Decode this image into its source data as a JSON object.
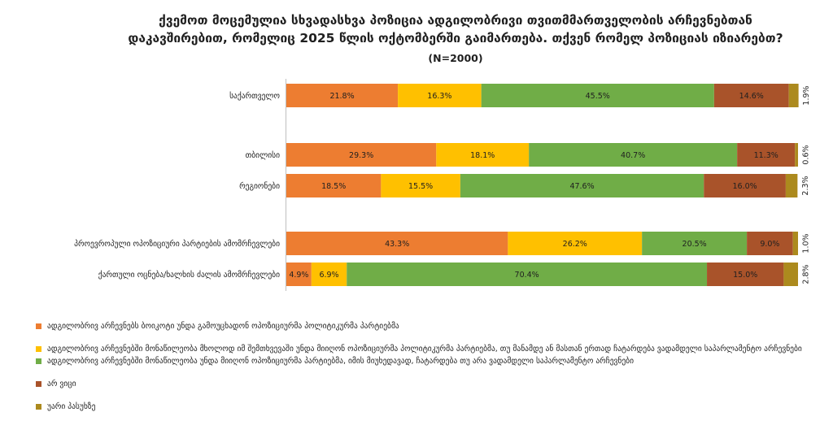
{
  "chart_data": {
    "type": "bar",
    "orientation": "horizontal",
    "stacked": true,
    "title_lines": [
      "ქვემოთ მოცემულია სხვადასხვა პოზიცია ადგილობრივი თვითმმართველობის არჩევნებთან",
      "დაკავშირებით, რომელიც 2025 წლის ოქტომბერში გაიმართება. თქვენ რომელ პოზიციას იზიარებთ?"
    ],
    "subtitle": "(N=2000)",
    "categories": [
      "საქართველო",
      "თბილისი",
      "რეგიონები",
      "პროევროპული ოპოზიციური პარტიების ამომრჩევლები",
      "ქართული ოცნება/ხალხის ძალის ამომრჩევლები"
    ],
    "series": [
      {
        "name": "ადგილობრივ არჩევნებს ბოიკოტი უნდა გამოუცხადონ ოპოზიციურმა პოლიტიკურმა პარტიებმა",
        "color": "#ED7D31",
        "values": [
          21.8,
          29.3,
          18.5,
          43.3,
          4.9
        ],
        "labels": [
          "21.8%",
          "29.3%",
          "18.5%",
          "43.3%",
          "4.9%"
        ]
      },
      {
        "name": "ადგილობრივ არჩევნებში მონაწილეობა მხოლოდ იმ შემთხვევაში უნდა მიიღონ ოპოზიციურმა პოლიტიკურმა პარტიებმა, თუ მანამდე ან მასთან ერთად ჩატარდება ვადამდელი საპარლამენტო არჩევნები",
        "color": "#FFC000",
        "values": [
          16.3,
          18.1,
          15.5,
          26.2,
          6.9
        ],
        "labels": [
          "16.3%",
          "18.1%",
          "15.5%",
          "26.2%",
          "6.9%"
        ]
      },
      {
        "name": "ადგილობრივ არჩევნებში მონაწილეობა უნდა მიიღონ ოპოზიციურმა პარტიებმა, იმის მიუხედავად, ჩატარდება თუ არა ვადამდელი საპარლამენტო არჩევნები",
        "color": "#70AD47",
        "values": [
          45.5,
          40.7,
          47.6,
          20.5,
          70.4
        ],
        "labels": [
          "45.5%",
          "40.7%",
          "47.6%",
          "20.5%",
          "70.4%"
        ]
      },
      {
        "name": "არ ვიცი",
        "color": "#A9532A",
        "values": [
          14.6,
          11.3,
          16.0,
          9.0,
          15.0
        ],
        "labels": [
          "14.6%",
          "11.3%",
          "16.0%",
          "9.0%",
          "15.0%"
        ]
      },
      {
        "name": "უარი პასუხზე",
        "color": "#AC8A1E",
        "values": [
          1.9,
          0.6,
          2.3,
          1.0,
          2.8
        ],
        "labels": [
          "1.9%",
          "0.6%",
          "2.3%",
          "1.0%",
          "2.8%"
        ]
      }
    ],
    "xlim": [
      0,
      100
    ],
    "grid": false,
    "legend_position": "bottom"
  }
}
